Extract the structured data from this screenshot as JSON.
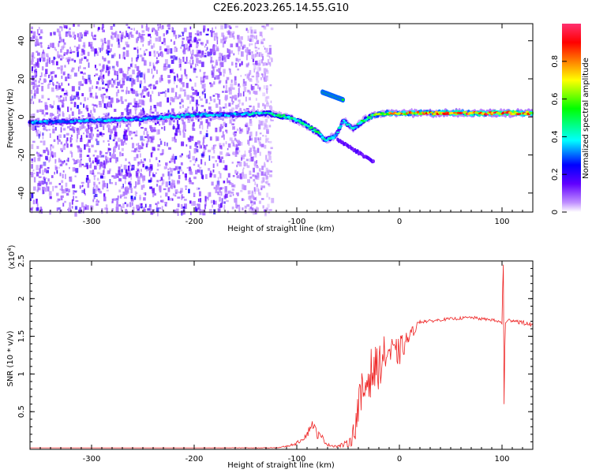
{
  "figure_title": "C2E6.2023.265.14.55.G10",
  "chart_data": [
    {
      "type": "heatmap",
      "title": "C2E6.2023.265.14.55.G10",
      "xlabel": "Height of straight line (km)",
      "ylabel": "Frequency (Hz)",
      "xlim": [
        -360,
        130
      ],
      "ylim": [
        -50,
        49
      ],
      "xticks": [
        -300,
        -200,
        -100,
        0,
        100
      ],
      "yticks": [
        -40,
        -20,
        0,
        20,
        40
      ],
      "colorbar": {
        "label": "Normalized spectral amplitude",
        "range": [
          0.0,
          1.0
        ],
        "ticks": [
          0.0,
          0.2,
          0.4,
          0.6,
          0.8
        ],
        "colormap": [
          "#ffffff",
          "#b070ff",
          "#5000ff",
          "#0000ff",
          "#00ffff",
          "#00ff00",
          "#ffff00",
          "#ff8000",
          "#ff0000",
          "#ff4080"
        ]
      },
      "noise_region_x": [
        -360,
        -125
      ],
      "signal_trace": {
        "x": [
          -360,
          -300,
          -250,
          -200,
          -170,
          -130,
          -110,
          -95,
          -80,
          -72,
          -62,
          -55,
          -45,
          -35,
          -25,
          -10,
          0,
          20,
          60,
          100,
          130
        ],
        "y": [
          -3,
          -2,
          -1,
          1,
          1,
          2,
          0,
          -3,
          -8,
          -12,
          -10,
          -2,
          -6,
          -2,
          1,
          2,
          2,
          2,
          2,
          2,
          2
        ],
        "amplitude": [
          0.35,
          0.35,
          0.38,
          0.4,
          0.35,
          0.45,
          0.5,
          0.55,
          0.5,
          0.45,
          0.4,
          0.4,
          0.45,
          0.5,
          0.6,
          0.75,
          0.8,
          0.85,
          0.9,
          0.9,
          0.85
        ]
      },
      "secondary_trace": {
        "x": [
          -75,
          -65,
          -55
        ],
        "y": [
          13,
          11,
          9
        ]
      }
    },
    {
      "type": "line",
      "xlabel": "Height of straight line (km)",
      "ylabel": "SNR (10 * v/v)",
      "y_multiplier": "(x10",
      "y_multiplier_exp": "4",
      "y_multiplier_close": ")",
      "xlim": [
        -360,
        130
      ],
      "ylim": [
        0,
        2.5
      ],
      "xticks": [
        -300,
        -200,
        -100,
        0,
        100
      ],
      "yticks": [
        0.5,
        1.0,
        1.5,
        2.0,
        2.5
      ],
      "color": "#ee2222",
      "series": [
        {
          "x": [
            -360,
            -300,
            -200,
            -120,
            -110,
            -100,
            -90,
            -85,
            -80,
            -75,
            -70,
            -60,
            -50,
            -45,
            -40,
            -35,
            -30,
            -25,
            -20,
            -15,
            -10,
            -5,
            0,
            5,
            10,
            15,
            20,
            30,
            40,
            50,
            60,
            70,
            80,
            90,
            95,
            100,
            101,
            102,
            103,
            105,
            110,
            120,
            130
          ],
          "y": [
            0.02,
            0.02,
            0.02,
            0.02,
            0.04,
            0.08,
            0.2,
            0.35,
            0.2,
            0.15,
            0.06,
            0.04,
            0.08,
            0.2,
            0.55,
            0.75,
            1.0,
            1.05,
            1.1,
            1.25,
            1.3,
            1.25,
            1.3,
            1.4,
            1.5,
            1.6,
            1.7,
            1.7,
            1.72,
            1.73,
            1.74,
            1.75,
            1.73,
            1.72,
            1.7,
            1.68,
            2.45,
            0.6,
            1.65,
            1.7,
            1.72,
            1.68,
            1.65
          ],
          "noise": [
            0,
            0,
            0,
            0.005,
            0.01,
            0.02,
            0.05,
            0.06,
            0.06,
            0.04,
            0.02,
            0.02,
            0.05,
            0.15,
            0.3,
            0.35,
            0.35,
            0.3,
            0.3,
            0.25,
            0.25,
            0.2,
            0.2,
            0.15,
            0.1,
            0.06,
            0.03,
            0.02,
            0.02,
            0.02,
            0.02,
            0.02,
            0.02,
            0.02,
            0.02,
            0.03,
            0,
            0,
            0.03,
            0.03,
            0.03,
            0.03,
            0.03
          ]
        }
      ]
    }
  ]
}
